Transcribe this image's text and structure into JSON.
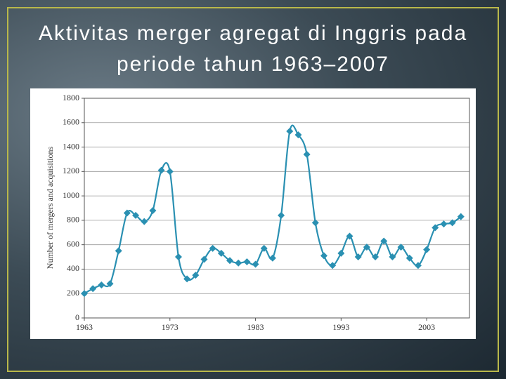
{
  "chart_data": {
    "type": "line",
    "title": "Aktivitas merger agregat di Inggris pada periode tahun 1963–2007",
    "ylabel": "Number of mergers and acquisitions",
    "x": [
      1963,
      1964,
      1965,
      1966,
      1967,
      1968,
      1969,
      1970,
      1971,
      1972,
      1973,
      1974,
      1975,
      1976,
      1977,
      1978,
      1979,
      1980,
      1981,
      1982,
      1983,
      1984,
      1985,
      1986,
      1987,
      1988,
      1989,
      1990,
      1991,
      1992,
      1993,
      1994,
      1995,
      1996,
      1997,
      1998,
      1999,
      2000,
      2001,
      2002,
      2003,
      2004,
      2005,
      2006,
      2007
    ],
    "series": [
      {
        "color": "#2a90b2",
        "values": [
          200,
          240,
          270,
          280,
          550,
          860,
          840,
          790,
          880,
          1210,
          1200,
          500,
          320,
          350,
          480,
          570,
          530,
          470,
          450,
          460,
          440,
          570,
          490,
          840,
          1530,
          1500,
          1340,
          780,
          510,
          430,
          530,
          670,
          500,
          580,
          500,
          630,
          500,
          580,
          490,
          430,
          560,
          740,
          770,
          780,
          830
        ]
      }
    ],
    "xlim": [
      1963,
      2008
    ],
    "xticks": [
      1963,
      1973,
      1983,
      1993,
      2003
    ],
    "ylim": [
      0,
      1800
    ],
    "yticks": [
      0,
      200,
      400,
      600,
      800,
      1000,
      1200,
      1400,
      1600,
      1800
    ],
    "grid": true
  }
}
